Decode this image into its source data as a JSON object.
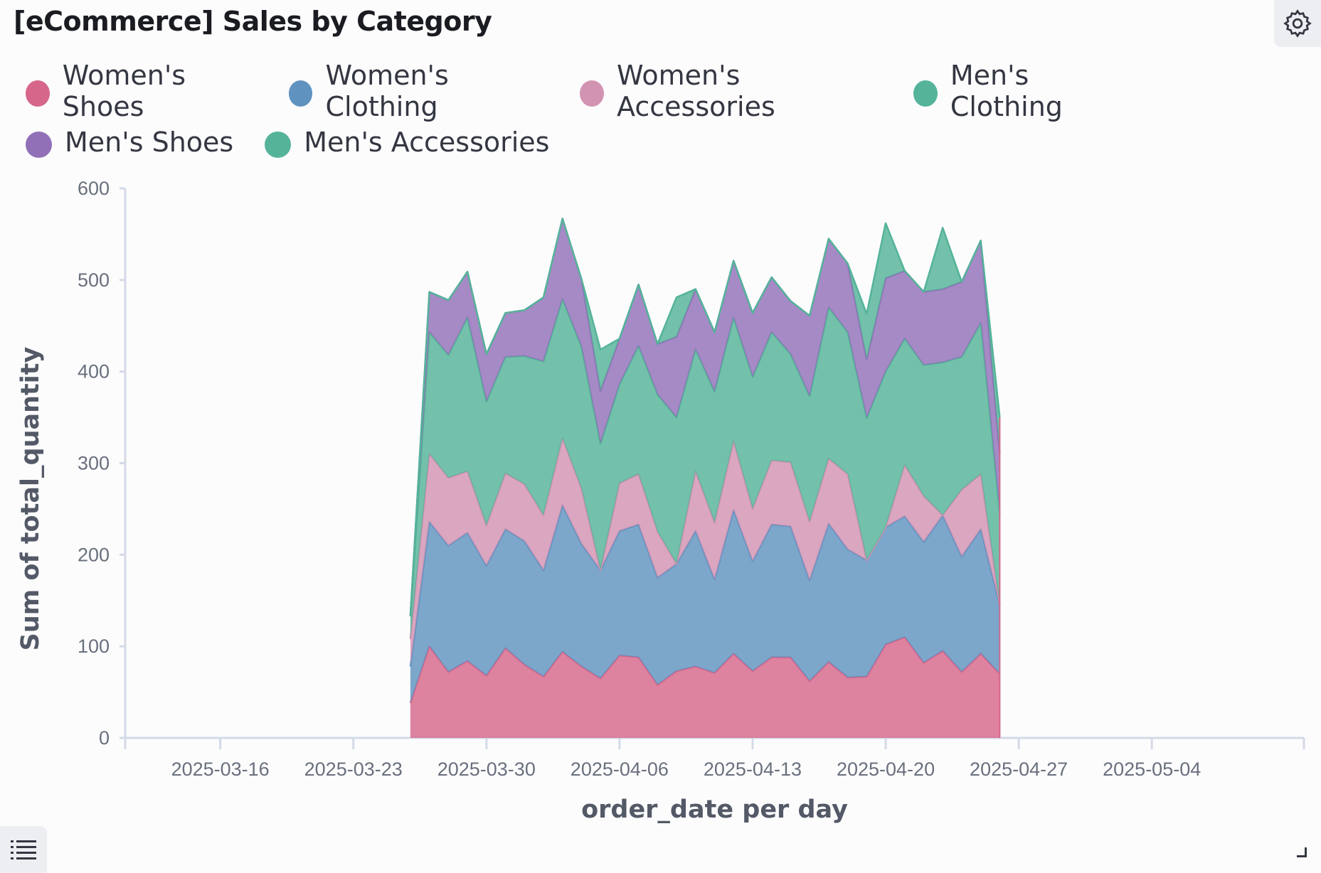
{
  "panel": {
    "title": "[eCommerce] Sales by Category"
  },
  "icons": {
    "settings": "gear-icon",
    "legend_toggle": "list-icon",
    "resize": "resize-handle-icon"
  },
  "legend": {
    "rows": [
      [
        {
          "name": "Women's Shoes",
          "color": "#d6668a"
        },
        {
          "name": "Women's Clothing",
          "color": "#6092c0"
        },
        {
          "name": "Women's Accessories",
          "color": "#d293b2"
        },
        {
          "name": "Men's Clothing",
          "color": "#54b399"
        }
      ],
      [
        {
          "name": "Men's Shoes",
          "color": "#9170b8"
        },
        {
          "name": "Men's Accessories",
          "color": "#54b399"
        }
      ]
    ]
  },
  "chart_data": {
    "type": "area",
    "stacked": true,
    "xlabel": "order_date per day",
    "ylabel": "Sum of total_quantity",
    "ylim": [
      0,
      600
    ],
    "y_ticks": [
      0,
      100,
      200,
      300,
      400,
      500,
      600
    ],
    "xlim": [
      "2025-03-11",
      "2025-05-12"
    ],
    "x_ticks": [
      "2025-03-16",
      "2025-03-23",
      "2025-03-30",
      "2025-04-06",
      "2025-04-13",
      "2025-04-20",
      "2025-04-27",
      "2025-05-04"
    ],
    "x": [
      "2025-03-26",
      "2025-03-27",
      "2025-03-28",
      "2025-03-29",
      "2025-03-30",
      "2025-03-31",
      "2025-04-01",
      "2025-04-02",
      "2025-04-03",
      "2025-04-04",
      "2025-04-05",
      "2025-04-06",
      "2025-04-07",
      "2025-04-08",
      "2025-04-09",
      "2025-04-10",
      "2025-04-11",
      "2025-04-12",
      "2025-04-13",
      "2025-04-14",
      "2025-04-15",
      "2025-04-16",
      "2025-04-17",
      "2025-04-18",
      "2025-04-19",
      "2025-04-20",
      "2025-04-21",
      "2025-04-22",
      "2025-04-23",
      "2025-04-24",
      "2025-04-25",
      "2025-04-26"
    ],
    "series": [
      {
        "name": "Women's Shoes",
        "color": "#d6668a",
        "values": [
          38,
          100,
          72,
          84,
          68,
          98,
          80,
          67,
          94,
          78,
          65,
          90,
          88,
          58,
          73,
          78,
          71,
          92,
          73,
          88,
          88,
          62,
          83,
          66,
          67,
          102,
          110,
          82,
          95,
          72,
          92,
          70
        ]
      },
      {
        "name": "Women's Clothing",
        "color": "#6092c0",
        "values": [
          40,
          136,
          138,
          140,
          120,
          130,
          135,
          116,
          160,
          134,
          118,
          136,
          145,
          117,
          117,
          148,
          102,
          157,
          120,
          145,
          143,
          110,
          151,
          140,
          127,
          128,
          132,
          132,
          148,
          126,
          136,
          75
        ]
      },
      {
        "name": "Women's Accessories",
        "color": "#d293b2",
        "values": [
          30,
          74,
          74,
          67,
          44,
          61,
          62,
          60,
          73,
          60,
          0,
          52,
          55,
          50,
          0,
          65,
          62,
          75,
          57,
          70,
          70,
          64,
          71,
          82,
          0,
          0,
          56,
          50,
          0,
          73,
          60,
          0
        ]
      },
      {
        "name": "Men's Clothing",
        "color": "#54b399",
        "values": [
          25,
          133,
          134,
          168,
          135,
          127,
          140,
          168,
          152,
          155,
          138,
          108,
          140,
          150,
          160,
          133,
          143,
          135,
          144,
          140,
          118,
          137,
          165,
          155,
          155,
          170,
          138,
          143,
          167,
          145,
          165,
          100
        ]
      },
      {
        "name": "Men's Shoes",
        "color": "#9170b8",
        "values": [
          0,
          44,
          60,
          50,
          52,
          48,
          50,
          70,
          88,
          74,
          58,
          50,
          67,
          55,
          88,
          66,
          65,
          62,
          70,
          60,
          58,
          88,
          75,
          75,
          64,
          102,
          74,
          80,
          80,
          82,
          90,
          65
        ]
      },
      {
        "name": "Men's Accessories",
        "color": "#54b399",
        "values": [
          0,
          0,
          0,
          0,
          0,
          0,
          0,
          0,
          0,
          0,
          45,
          0,
          0,
          0,
          43,
          0,
          0,
          0,
          0,
          0,
          0,
          0,
          0,
          0,
          50,
          60,
          0,
          0,
          67,
          0,
          0,
          40
        ]
      }
    ]
  }
}
